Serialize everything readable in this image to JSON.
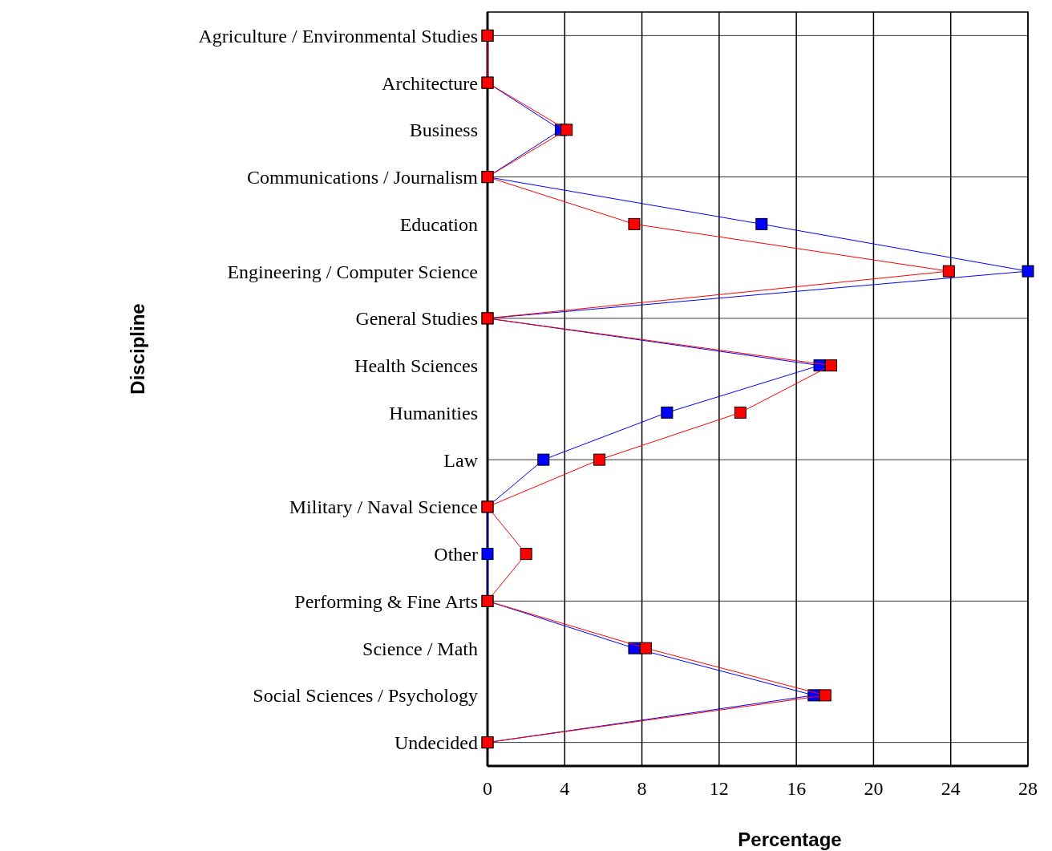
{
  "chart_data": {
    "type": "line",
    "orientation": "horizontal",
    "xlabel": "Percentage",
    "ylabel": "Discipline",
    "categories": [
      "Agriculture / Environmental Studies",
      "Architecture",
      "Business",
      "Communications / Journalism",
      "Education",
      "Engineering / Computer Science",
      "General Studies",
      "Health Sciences",
      "Humanities",
      "Law",
      "Military / Naval Science",
      "Other",
      "Performing & Fine Arts",
      "Science / Math",
      "Social Sciences / Psychology",
      "Undecided"
    ],
    "series": [
      {
        "color": "#0000ff",
        "values": [
          0,
          0,
          3.8,
          0,
          14.2,
          28,
          0,
          17.2,
          9.3,
          2.9,
          0,
          0,
          0,
          7.6,
          16.9,
          0
        ]
      },
      {
        "color": "#ff0000",
        "values": [
          0,
          0,
          4.1,
          0,
          7.6,
          23.9,
          0,
          17.8,
          13.1,
          5.8,
          0,
          2,
          0,
          8.2,
          17.5,
          0
        ]
      }
    ],
    "xlim": [
      0,
      28
    ],
    "xticks": [
      0,
      4,
      8,
      12,
      16,
      20,
      24,
      28
    ],
    "grid": true,
    "marker": "square",
    "line_style": "solid"
  }
}
